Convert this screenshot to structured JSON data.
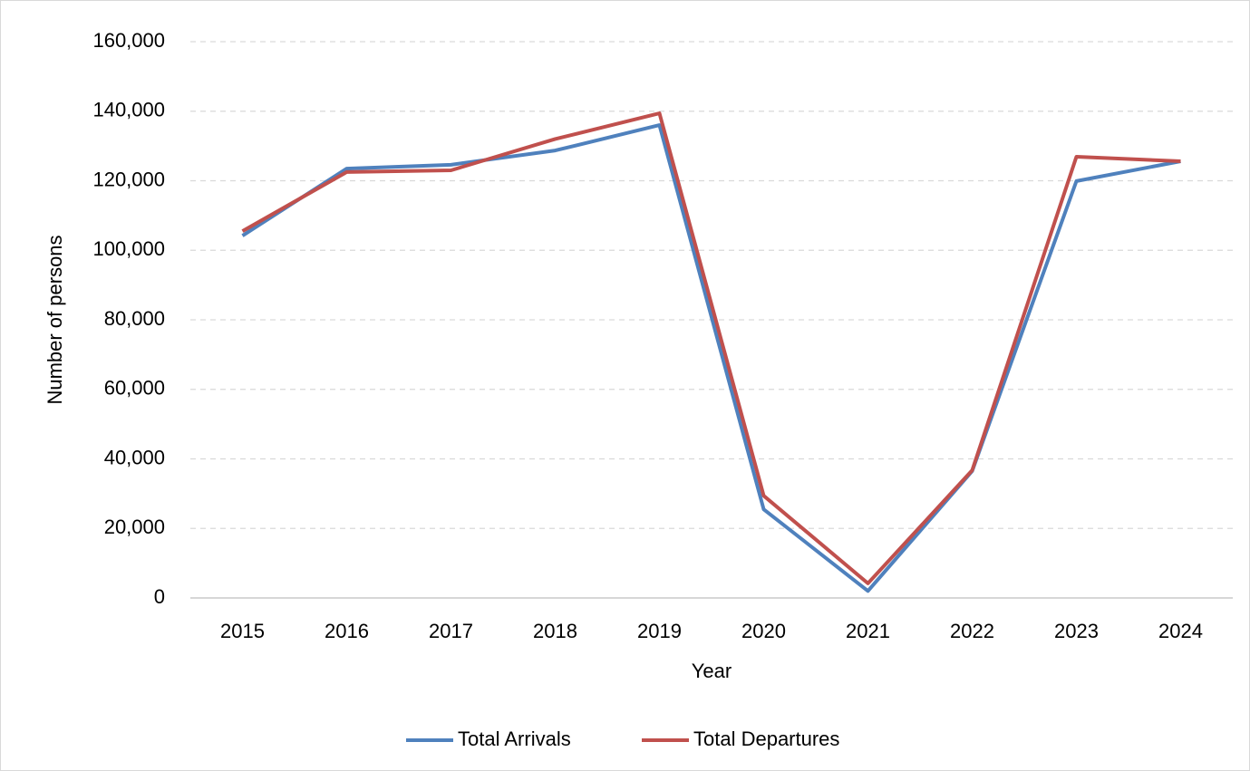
{
  "chart_data": {
    "type": "line",
    "x_label": "Year",
    "y_label": "Number of persons",
    "categories": [
      "2015",
      "2016",
      "2017",
      "2018",
      "2019",
      "2020",
      "2021",
      "2022",
      "2023",
      "2024"
    ],
    "series": [
      {
        "name": "Total Arrivals",
        "color": "#4f81bd",
        "values": [
          104200,
          123500,
          124600,
          128700,
          136000,
          25500,
          2000,
          36500,
          119900,
          125600
        ]
      },
      {
        "name": "Total Departures",
        "color": "#c0504d",
        "values": [
          105500,
          122500,
          123000,
          132000,
          139400,
          29400,
          4200,
          36700,
          126900,
          125600
        ]
      }
    ],
    "ylim": [
      0,
      160000
    ],
    "yticks": [
      0,
      {
        "value": 20000,
        "label": "20,000"
      },
      {
        "value": 40000,
        "label": "40,000"
      },
      {
        "value": 60000,
        "label": "60,000"
      },
      {
        "value": 80000,
        "label": "80,000"
      },
      {
        "value": 100000,
        "label": "100,000"
      },
      {
        "value": 120000,
        "label": "120,000"
      },
      {
        "value": 140000,
        "label": "140,000"
      },
      {
        "value": 160000,
        "label": "160,000"
      }
    ],
    "grid": true,
    "legend": "bottom"
  }
}
